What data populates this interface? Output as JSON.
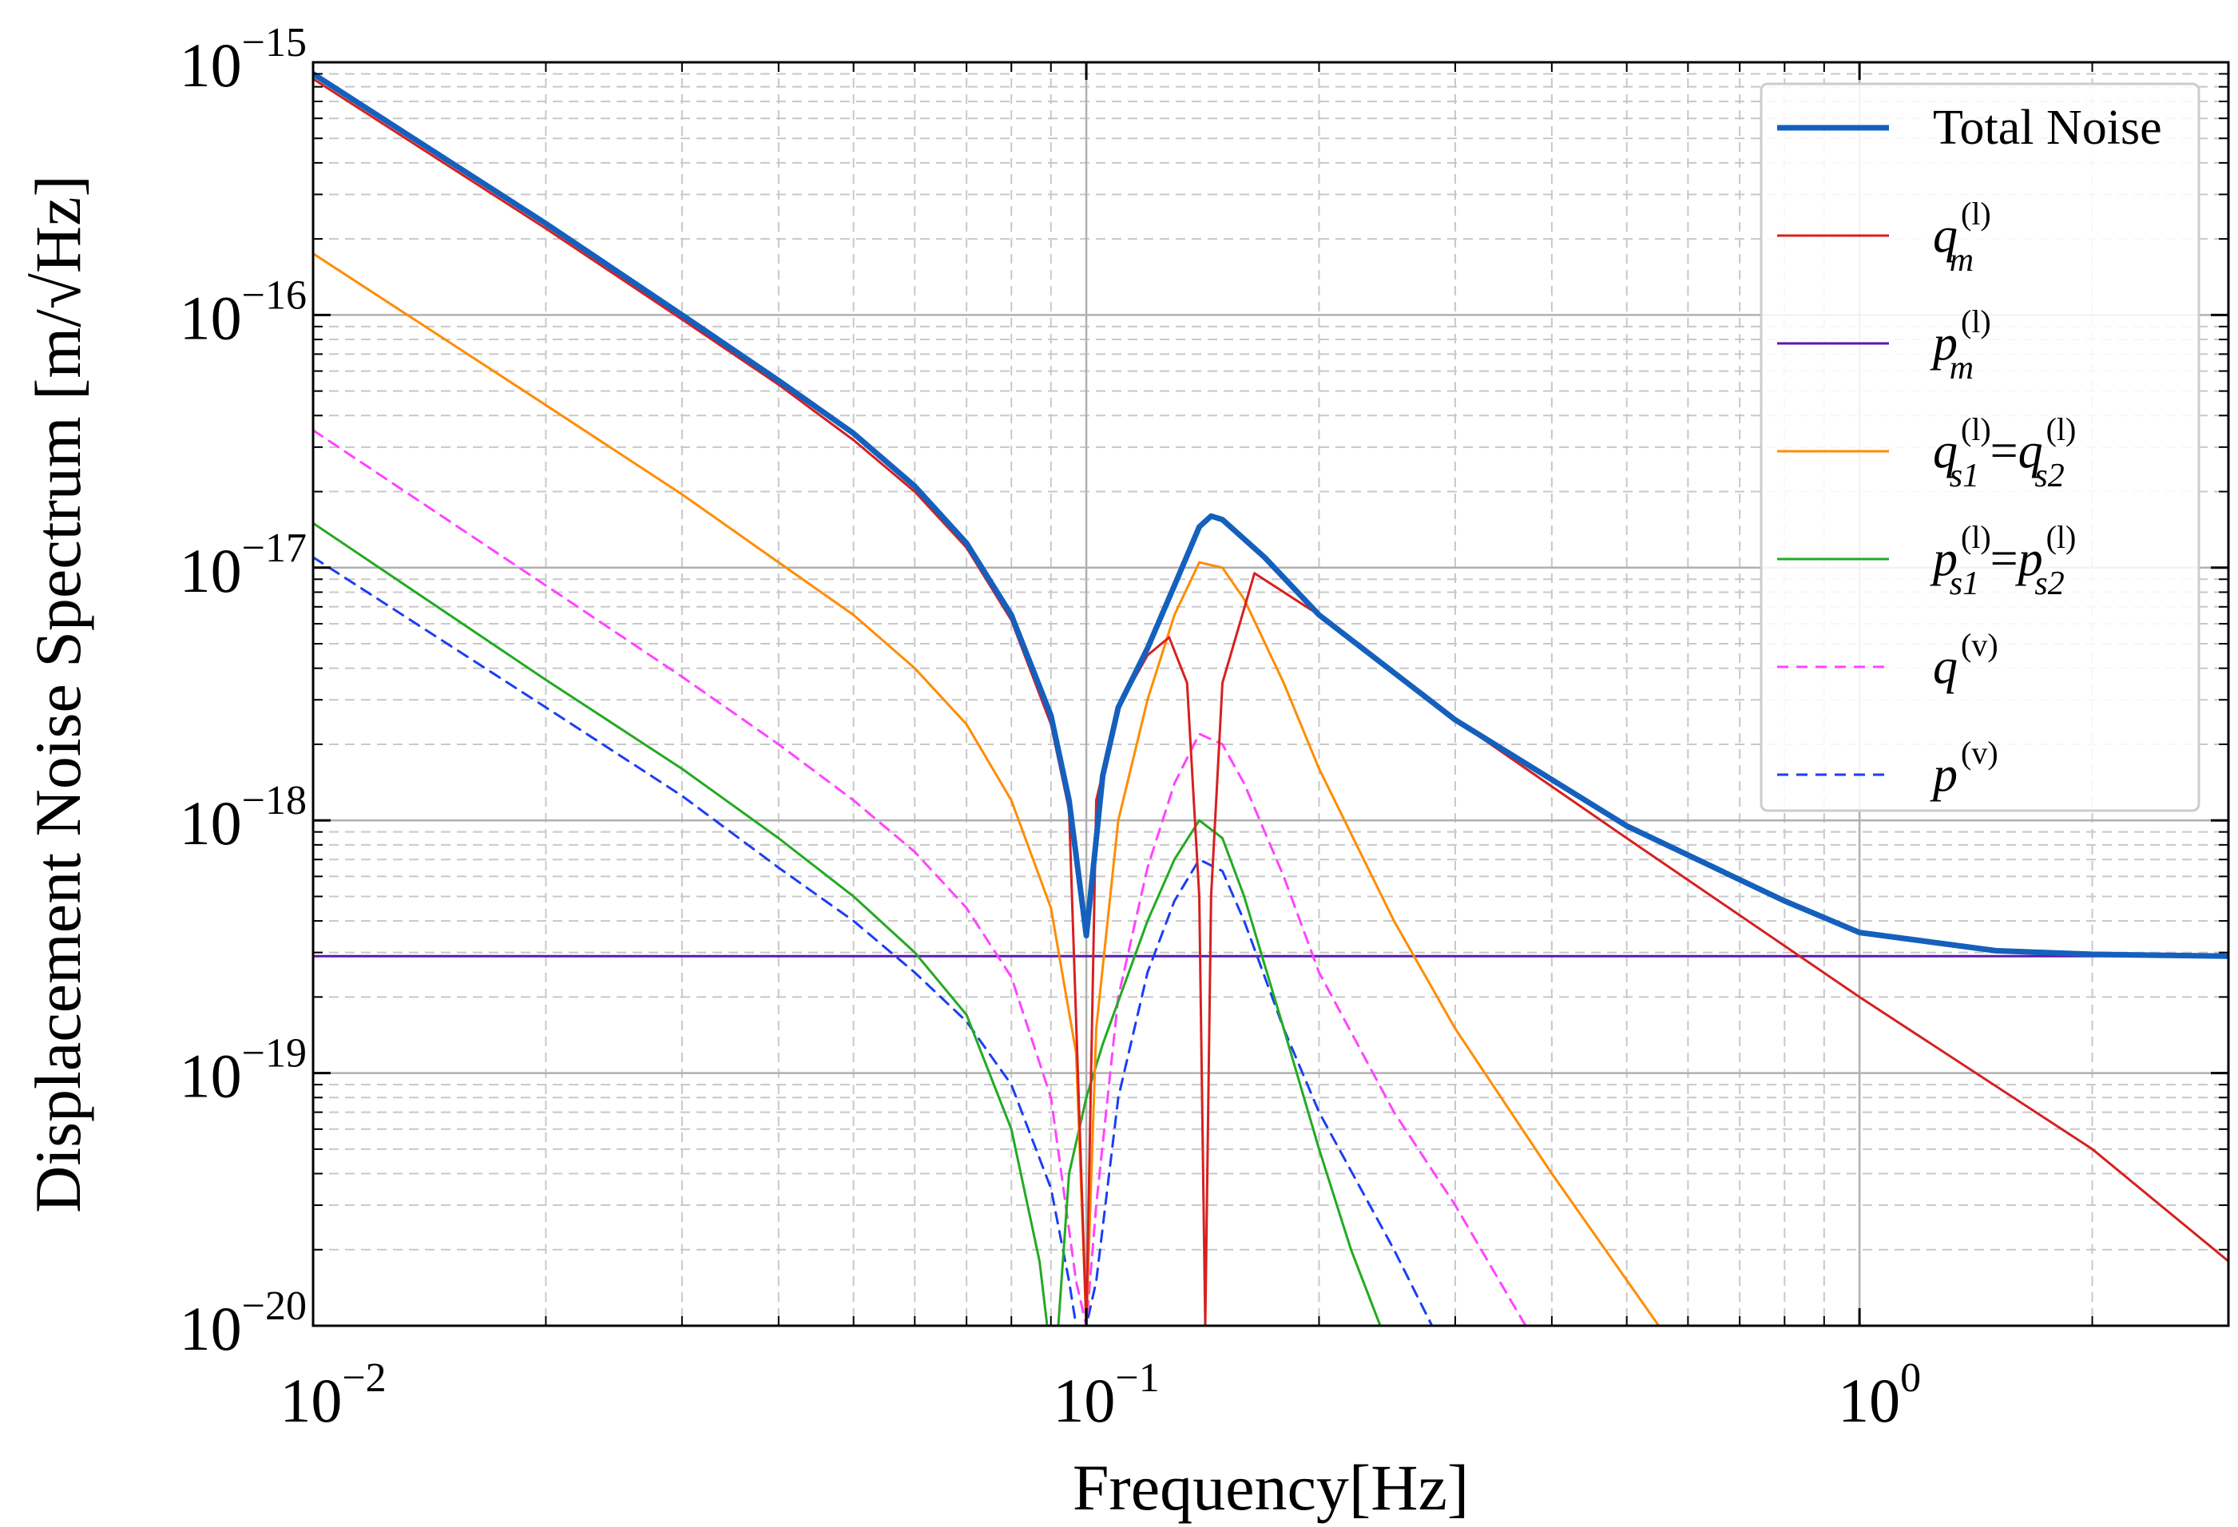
{
  "chart_data": {
    "type": "line",
    "xlabel": "Frequency[Hz]",
    "ylabel": "Displacement Noise Spectrum [m/√Hz]",
    "xscale": "log",
    "yscale": "log",
    "xlim": [
      0.01,
      3.0
    ],
    "ylim": [
      1e-20,
      1e-15
    ],
    "grid": true,
    "legend_position": "top-right",
    "x_ticks": [
      {
        "value": 0.01,
        "base": "10",
        "exp": "−2"
      },
      {
        "value": 0.1,
        "base": "10",
        "exp": "−1"
      },
      {
        "value": 1,
        "base": "10",
        "exp": "0"
      }
    ],
    "y_ticks": [
      {
        "value": 1e-20,
        "base": "10",
        "exp": "−20"
      },
      {
        "value": 1e-19,
        "base": "10",
        "exp": "−19"
      },
      {
        "value": 1e-18,
        "base": "10",
        "exp": "−18"
      },
      {
        "value": 1e-17,
        "base": "10",
        "exp": "−17"
      },
      {
        "value": 1e-16,
        "base": "10",
        "exp": "−16"
      },
      {
        "value": 1e-15,
        "base": "10",
        "exp": "−15"
      }
    ],
    "series": [
      {
        "name": "Total Noise",
        "legend": {
          "main": "Total Noise"
        },
        "color": "#1560bd",
        "width": 7,
        "dash": "none",
        "points": [
          [
            0.01,
            9e-16
          ],
          [
            0.02,
            2.3e-16
          ],
          [
            0.03,
            1e-16
          ],
          [
            0.04,
            5.5e-17
          ],
          [
            0.05,
            3.4e-17
          ],
          [
            0.06,
            2.1e-17
          ],
          [
            0.07,
            1.25e-17
          ],
          [
            0.08,
            6.5e-18
          ],
          [
            0.09,
            2.6e-18
          ],
          [
            0.095,
            1.2e-18
          ],
          [
            0.1,
            3.5e-19
          ],
          [
            0.105,
            1.5e-18
          ],
          [
            0.11,
            2.8e-18
          ],
          [
            0.12,
            4.8e-18
          ],
          [
            0.13,
            8.5e-18
          ],
          [
            0.14,
            1.45e-17
          ],
          [
            0.145,
            1.6e-17
          ],
          [
            0.15,
            1.55e-17
          ],
          [
            0.17,
            1.1e-17
          ],
          [
            0.2,
            6.5e-18
          ],
          [
            0.3,
            2.5e-18
          ],
          [
            0.5,
            9.5e-19
          ],
          [
            0.8,
            4.8e-19
          ],
          [
            1.0,
            3.6e-19
          ],
          [
            1.5,
            3.05e-19
          ],
          [
            2.0,
            2.95e-19
          ],
          [
            3.0,
            2.9e-19
          ]
        ]
      },
      {
        "name": "q_m^(l)",
        "legend": {
          "main": "q",
          "sub": "m",
          "sup": "(l)"
        },
        "color": "#d62020",
        "width": 3,
        "dash": "none",
        "points": [
          [
            0.01,
            8.6e-16
          ],
          [
            0.02,
            2.2e-16
          ],
          [
            0.03,
            9.6e-17
          ],
          [
            0.04,
            5.3e-17
          ],
          [
            0.05,
            3.2e-17
          ],
          [
            0.06,
            2e-17
          ],
          [
            0.07,
            1.2e-17
          ],
          [
            0.08,
            6.2e-18
          ],
          [
            0.09,
            2.4e-18
          ],
          [
            0.095,
            1.1e-18
          ],
          [
            0.1,
            1e-20
          ],
          [
            0.103,
            1.2e-18
          ],
          [
            0.11,
            2.8e-18
          ],
          [
            0.12,
            4.5e-18
          ],
          [
            0.128,
            5.3e-18
          ],
          [
            0.135,
            3.5e-18
          ],
          [
            0.14,
            5e-19
          ],
          [
            0.1425,
            1e-20
          ],
          [
            0.145,
            5e-19
          ],
          [
            0.15,
            3.5e-18
          ],
          [
            0.165,
            9.5e-18
          ],
          [
            0.2,
            6.5e-18
          ],
          [
            0.3,
            2.5e-18
          ],
          [
            0.5,
            8.5e-19
          ],
          [
            1.0,
            2e-19
          ],
          [
            2.0,
            5e-20
          ],
          [
            3.0,
            1.8e-20
          ]
        ]
      },
      {
        "name": "p_m^(l)",
        "legend": {
          "main": "p",
          "sub": "m",
          "sup": "(l)"
        },
        "color": "#5b1aa8",
        "width": 3,
        "dash": "none",
        "points": [
          [
            0.01,
            2.9e-19
          ],
          [
            3.0,
            2.9e-19
          ]
        ]
      },
      {
        "name": "q_s1^(l) = q_s2^(l)",
        "legend": {
          "main": "q",
          "sub": "s1",
          "sup": "(l)",
          "eq": "=",
          "main2": "q",
          "sub2": "s2",
          "sup2": "(l)"
        },
        "color": "#ff8c00",
        "width": 3,
        "dash": "none",
        "points": [
          [
            0.01,
            1.75e-16
          ],
          [
            0.02,
            4.4e-17
          ],
          [
            0.03,
            1.95e-17
          ],
          [
            0.04,
            1.05e-17
          ],
          [
            0.05,
            6.5e-18
          ],
          [
            0.06,
            4e-18
          ],
          [
            0.07,
            2.4e-18
          ],
          [
            0.08,
            1.2e-18
          ],
          [
            0.09,
            4.5e-19
          ],
          [
            0.097,
            1.2e-19
          ],
          [
            0.1,
            1e-20
          ],
          [
            0.103,
            1.5e-19
          ],
          [
            0.11,
            1e-18
          ],
          [
            0.12,
            3e-18
          ],
          [
            0.13,
            6.5e-18
          ],
          [
            0.14,
            1.05e-17
          ],
          [
            0.15,
            1e-17
          ],
          [
            0.16,
            7.5e-18
          ],
          [
            0.18,
            3.5e-18
          ],
          [
            0.2,
            1.6e-18
          ],
          [
            0.25,
            4e-19
          ],
          [
            0.3,
            1.5e-19
          ],
          [
            0.4,
            4e-20
          ],
          [
            0.55,
            1e-20
          ]
        ]
      },
      {
        "name": "p_s1^(l) = p_s2^(l)",
        "legend": {
          "main": "p",
          "sub": "s1",
          "sup": "(l)",
          "eq": "=",
          "main2": "p",
          "sub2": "s2",
          "sup2": "(l)"
        },
        "color": "#22aa22",
        "width": 3,
        "dash": "none",
        "points": [
          [
            0.01,
            1.5e-17
          ],
          [
            0.02,
            3.6e-18
          ],
          [
            0.03,
            1.6e-18
          ],
          [
            0.04,
            8.5e-19
          ],
          [
            0.05,
            5e-19
          ],
          [
            0.06,
            3e-19
          ],
          [
            0.07,
            1.7e-19
          ],
          [
            0.08,
            6e-20
          ],
          [
            0.087,
            1.8e-20
          ],
          [
            0.089,
            1e-20
          ],
          [
            0.092,
            1e-20
          ],
          [
            0.095,
            4e-20
          ],
          [
            0.1,
            8e-20
          ],
          [
            0.105,
            1.3e-19
          ],
          [
            0.12,
            4e-19
          ],
          [
            0.13,
            7e-19
          ],
          [
            0.14,
            1e-18
          ],
          [
            0.15,
            8.5e-19
          ],
          [
            0.16,
            5e-19
          ],
          [
            0.18,
            1.5e-19
          ],
          [
            0.2,
            5e-20
          ],
          [
            0.22,
            2e-20
          ],
          [
            0.24,
            1e-20
          ]
        ]
      },
      {
        "name": "q^(v)",
        "legend": {
          "main": "q",
          "sup": "(v)"
        },
        "color": "#ff44ff",
        "width": 3,
        "dash": "14 10",
        "points": [
          [
            0.01,
            3.5e-17
          ],
          [
            0.02,
            8.5e-18
          ],
          [
            0.03,
            3.7e-18
          ],
          [
            0.04,
            2e-18
          ],
          [
            0.05,
            1.2e-18
          ],
          [
            0.06,
            7.5e-19
          ],
          [
            0.07,
            4.5e-19
          ],
          [
            0.08,
            2.4e-19
          ],
          [
            0.09,
            8e-20
          ],
          [
            0.097,
            1.5e-20
          ],
          [
            0.1,
            1e-20
          ],
          [
            0.103,
            3e-20
          ],
          [
            0.11,
            2e-19
          ],
          [
            0.12,
            6.5e-19
          ],
          [
            0.13,
            1.4e-18
          ],
          [
            0.14,
            2.2e-18
          ],
          [
            0.15,
            2e-18
          ],
          [
            0.16,
            1.4e-18
          ],
          [
            0.18,
            6e-19
          ],
          [
            0.2,
            2.5e-19
          ],
          [
            0.25,
            7e-20
          ],
          [
            0.3,
            3e-20
          ],
          [
            0.37,
            1e-20
          ]
        ]
      },
      {
        "name": "p^(v)",
        "legend": {
          "main": "p",
          "sup": "(v)"
        },
        "color": "#1a3ef5",
        "width": 3,
        "dash": "14 10",
        "points": [
          [
            0.01,
            1.1e-17
          ],
          [
            0.02,
            2.8e-18
          ],
          [
            0.03,
            1.25e-18
          ],
          [
            0.04,
            6.5e-19
          ],
          [
            0.05,
            4e-19
          ],
          [
            0.06,
            2.5e-19
          ],
          [
            0.07,
            1.6e-19
          ],
          [
            0.08,
            9e-20
          ],
          [
            0.09,
            3.5e-20
          ],
          [
            0.095,
            1.5e-20
          ],
          [
            0.097,
            1e-20
          ],
          [
            0.1,
            1e-20
          ],
          [
            0.103,
            1.5e-20
          ],
          [
            0.11,
            8e-20
          ],
          [
            0.12,
            2.5e-19
          ],
          [
            0.13,
            4.8e-19
          ],
          [
            0.14,
            7e-19
          ],
          [
            0.15,
            6.3e-19
          ],
          [
            0.16,
            4e-19
          ],
          [
            0.18,
            1.5e-19
          ],
          [
            0.2,
            7e-20
          ],
          [
            0.25,
            2e-20
          ],
          [
            0.28,
            1e-20
          ]
        ]
      }
    ]
  }
}
